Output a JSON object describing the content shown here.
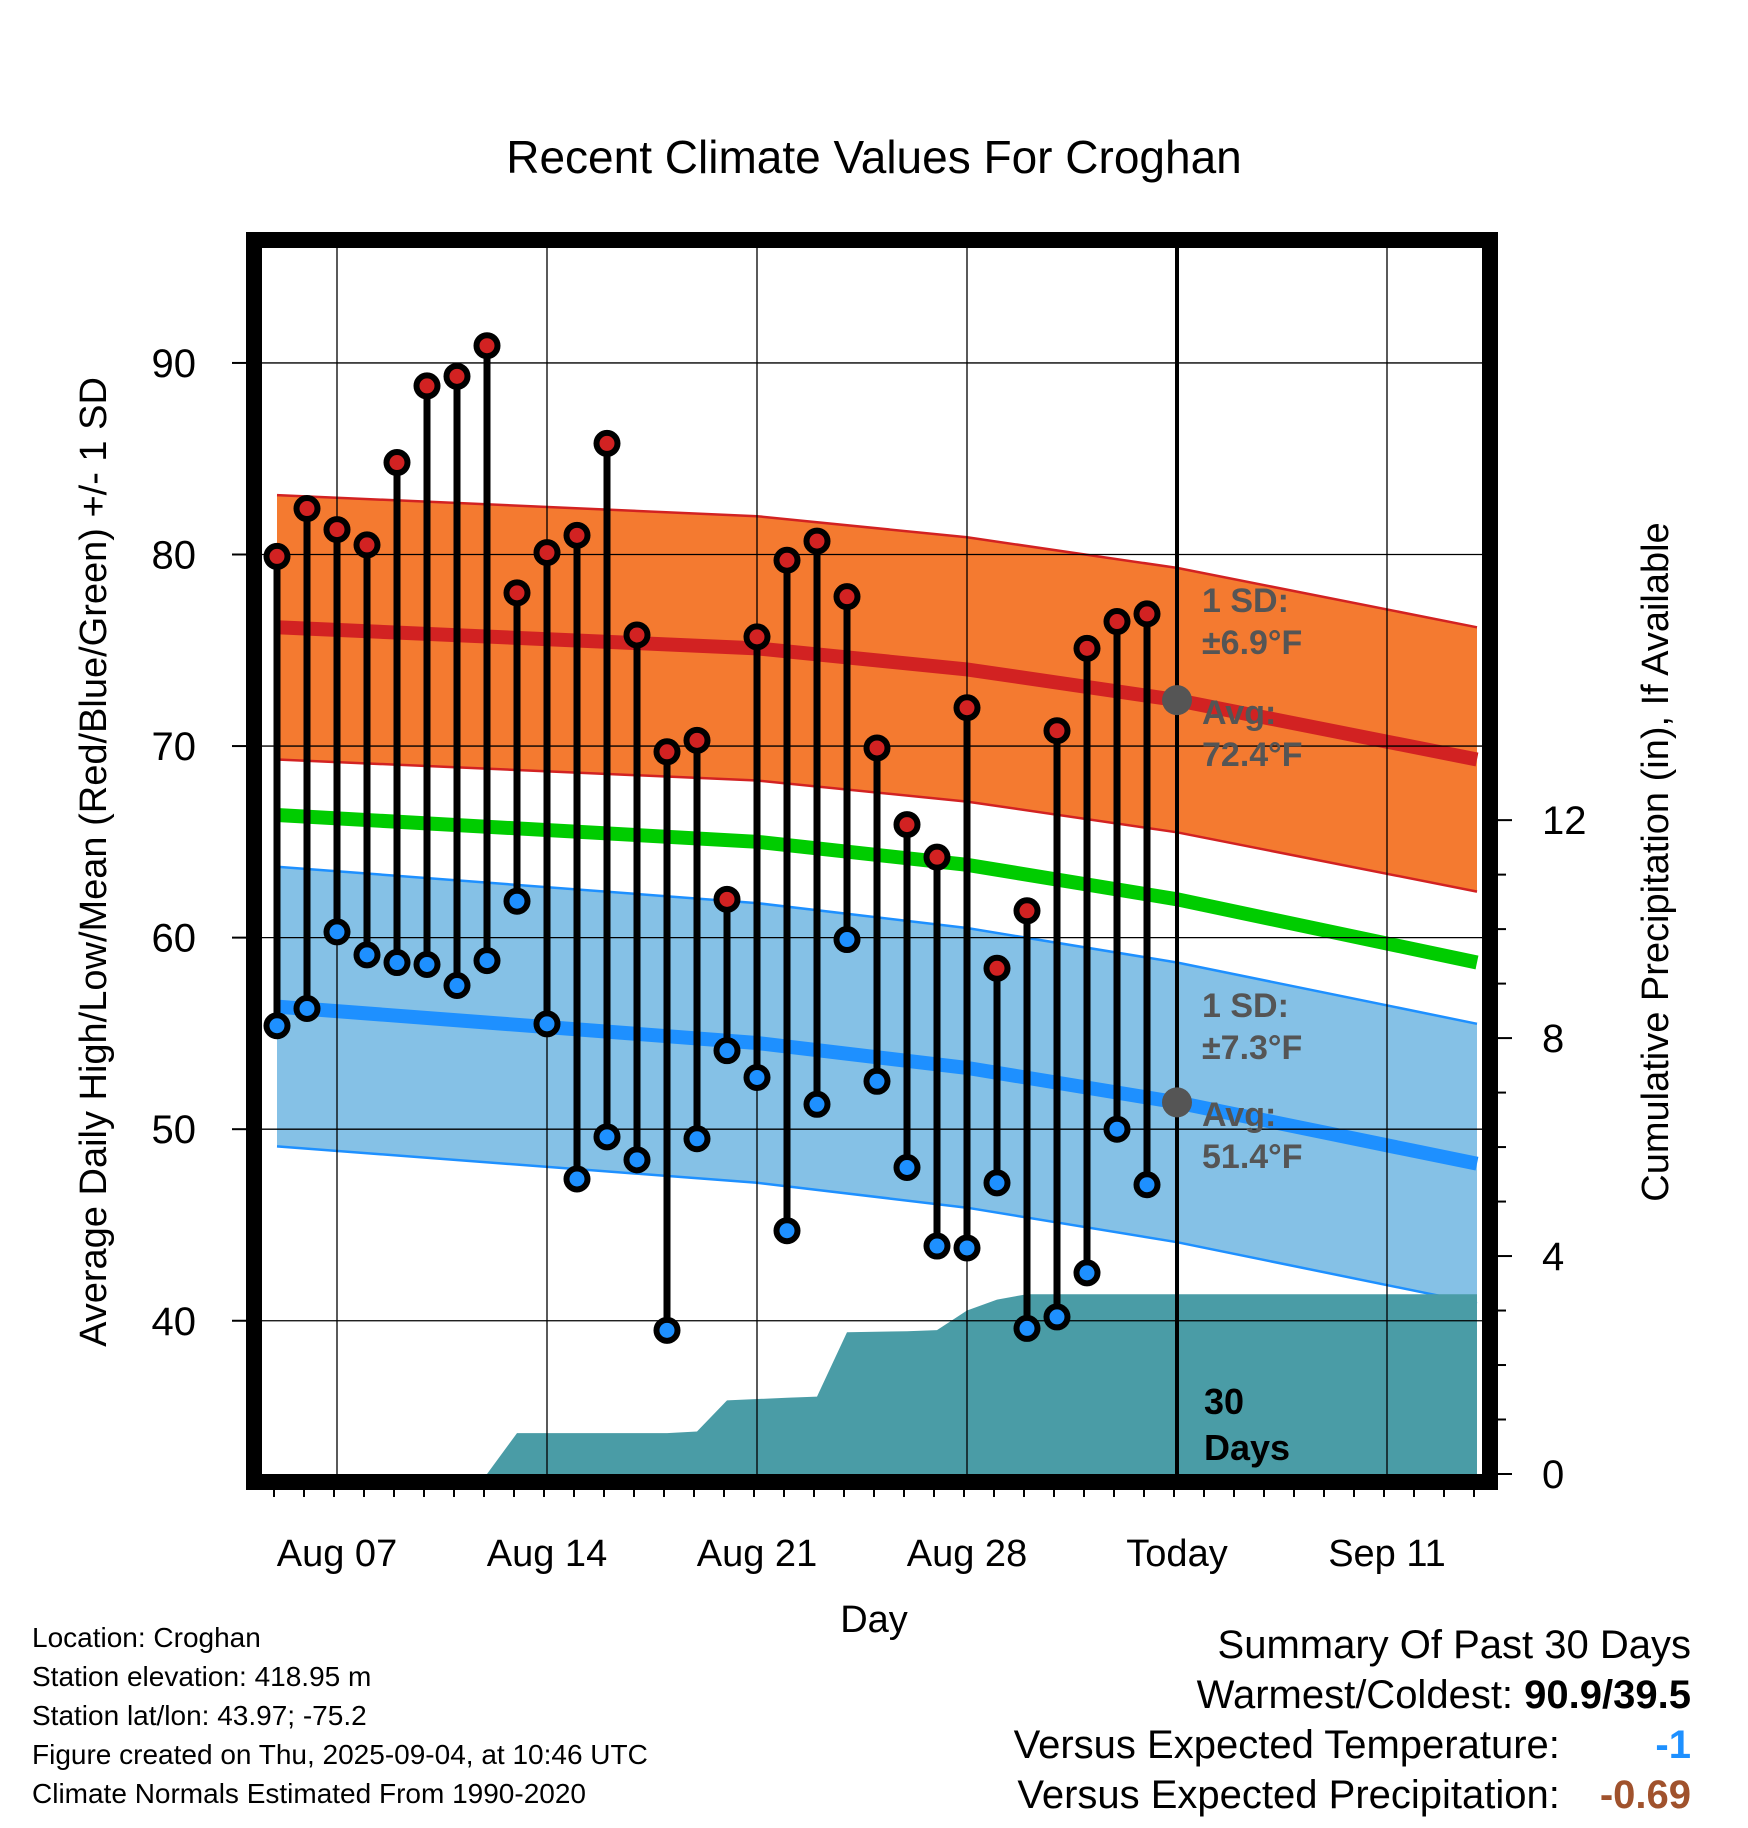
{
  "chart_data": {
    "type": "line",
    "title": "Recent Climate Values For Croghan",
    "xlabel": "Day",
    "ylabel": "Average Daily High/Low/Mean (Red/Blue/Green) +/- 1 SD",
    "ylabel_right": "Cumulative Precipitation (in), If Available",
    "x_tick_labels": [
      "Aug 07",
      "Aug 14",
      "Aug 21",
      "Aug 28",
      "Today",
      "Sep 11"
    ],
    "y_ticks": [
      40,
      50,
      60,
      70,
      80,
      90
    ],
    "y_ticks_right": [
      0,
      4,
      8,
      12
    ],
    "ylim": [
      32,
      96
    ],
    "ylim_right": [
      0,
      22.5
    ],
    "grid": true,
    "normals": {
      "dates": [
        "2025-08-05",
        "2025-08-21",
        "2025-08-28",
        "2025-09-04",
        "2025-09-14"
      ],
      "high_mean": [
        76.2,
        75.1,
        74.0,
        72.4,
        69.3
      ],
      "high_sd": 6.9,
      "mean": [
        66.4,
        65.0,
        63.8,
        62.0,
        58.7
      ],
      "low_mean": [
        56.4,
        54.5,
        53.2,
        51.4,
        48.2
      ],
      "low_sd": 7.3
    },
    "series": [
      {
        "name": "High",
        "dates": [
          "2025-08-05",
          "2025-08-06",
          "2025-08-07",
          "2025-08-08",
          "2025-08-09",
          "2025-08-10",
          "2025-08-11",
          "2025-08-12",
          "2025-08-13",
          "2025-08-14",
          "2025-08-15",
          "2025-08-16",
          "2025-08-17",
          "2025-08-18",
          "2025-08-19",
          "2025-08-20",
          "2025-08-21",
          "2025-08-22",
          "2025-08-23",
          "2025-08-24",
          "2025-08-25",
          "2025-08-26",
          "2025-08-27",
          "2025-08-28",
          "2025-08-29",
          "2025-08-30",
          "2025-08-31",
          "2025-09-01",
          "2025-09-02",
          "2025-09-03"
        ],
        "values": [
          79.9,
          82.4,
          81.3,
          80.5,
          84.8,
          88.8,
          89.3,
          90.9,
          78.0,
          80.1,
          81.0,
          85.8,
          75.8,
          69.7,
          70.3,
          62.0,
          75.7,
          79.7,
          80.7,
          77.8,
          69.9,
          65.9,
          64.2,
          72.0,
          58.4,
          61.4,
          70.8,
          75.1,
          76.5,
          76.9
        ]
      },
      {
        "name": "Low",
        "dates": [
          "2025-08-05",
          "2025-08-06",
          "2025-08-07",
          "2025-08-08",
          "2025-08-09",
          "2025-08-10",
          "2025-08-11",
          "2025-08-12",
          "2025-08-13",
          "2025-08-14",
          "2025-08-15",
          "2025-08-16",
          "2025-08-17",
          "2025-08-18",
          "2025-08-19",
          "2025-08-20",
          "2025-08-21",
          "2025-08-22",
          "2025-08-23",
          "2025-08-24",
          "2025-08-25",
          "2025-08-26",
          "2025-08-27",
          "2025-08-28",
          "2025-08-29",
          "2025-08-30",
          "2025-08-31",
          "2025-09-01",
          "2025-09-02",
          "2025-09-03"
        ],
        "values": [
          55.4,
          56.3,
          60.3,
          59.1,
          58.7,
          58.6,
          57.5,
          58.8,
          61.9,
          55.5,
          47.4,
          49.6,
          48.4,
          39.5,
          49.5,
          54.1,
          52.7,
          44.7,
          51.3,
          59.9,
          52.5,
          48.0,
          43.9,
          43.8,
          47.2,
          39.6,
          40.2,
          42.5,
          50.0,
          47.1
        ]
      }
    ],
    "precipitation": {
      "dates": [
        "2025-08-05",
        "2025-08-12",
        "2025-08-13",
        "2025-08-18",
        "2025-08-19",
        "2025-08-20",
        "2025-08-22",
        "2025-08-23",
        "2025-08-24",
        "2025-08-26",
        "2025-08-27",
        "2025-08-28",
        "2025-08-29",
        "2025-08-30",
        "2025-09-04",
        "2025-09-14"
      ],
      "values": [
        0.0,
        0.0,
        0.75,
        0.75,
        0.78,
        1.35,
        1.4,
        1.42,
        2.6,
        2.62,
        2.64,
        3.0,
        3.2,
        3.3,
        3.3,
        3.3
      ]
    },
    "annotations": {
      "high_sd_label": "1 SD:",
      "high_sd_value": "±6.9°F",
      "high_avg_label": "Avg:",
      "high_avg_value": "72.4°F",
      "low_sd_label": "1 SD:",
      "low_sd_value": "±7.3°F",
      "low_avg_label": "Avg:",
      "low_avg_value": "51.4°F",
      "days_line1": "30",
      "days_line2": "Days"
    },
    "colors": {
      "high_band": "#f47a30",
      "high_line": "#d22222",
      "mean_line": "#00cc00",
      "low_band": "#85c1e6",
      "low_line": "#1e90ff",
      "precip": "#4a9ca6",
      "high_marker": "#d22222",
      "low_marker": "#1e90ff",
      "avg_marker": "#555555",
      "annotation_text": "#555555"
    }
  },
  "footer": {
    "location": "Location: Croghan",
    "elevation": "Station elevation: 418.95 m",
    "latlon": "Station lat/lon: 43.97; -75.2",
    "created": "Figure created on Thu, 2025-09-04, at 10:46 UTC",
    "normals": "Climate Normals Estimated From 1990-2020"
  },
  "summary": {
    "title": "Summary Of Past 30 Days",
    "warmest_label": "Warmest/Coldest:",
    "warmest_value": "90.9/39.5",
    "temp_label": "Versus Expected Temperature:",
    "temp_value": "-1",
    "temp_color": "#1e90ff",
    "precip_label": "Versus Expected Precipitation:",
    "precip_value": "-0.69",
    "precip_color": "#a0522d"
  }
}
